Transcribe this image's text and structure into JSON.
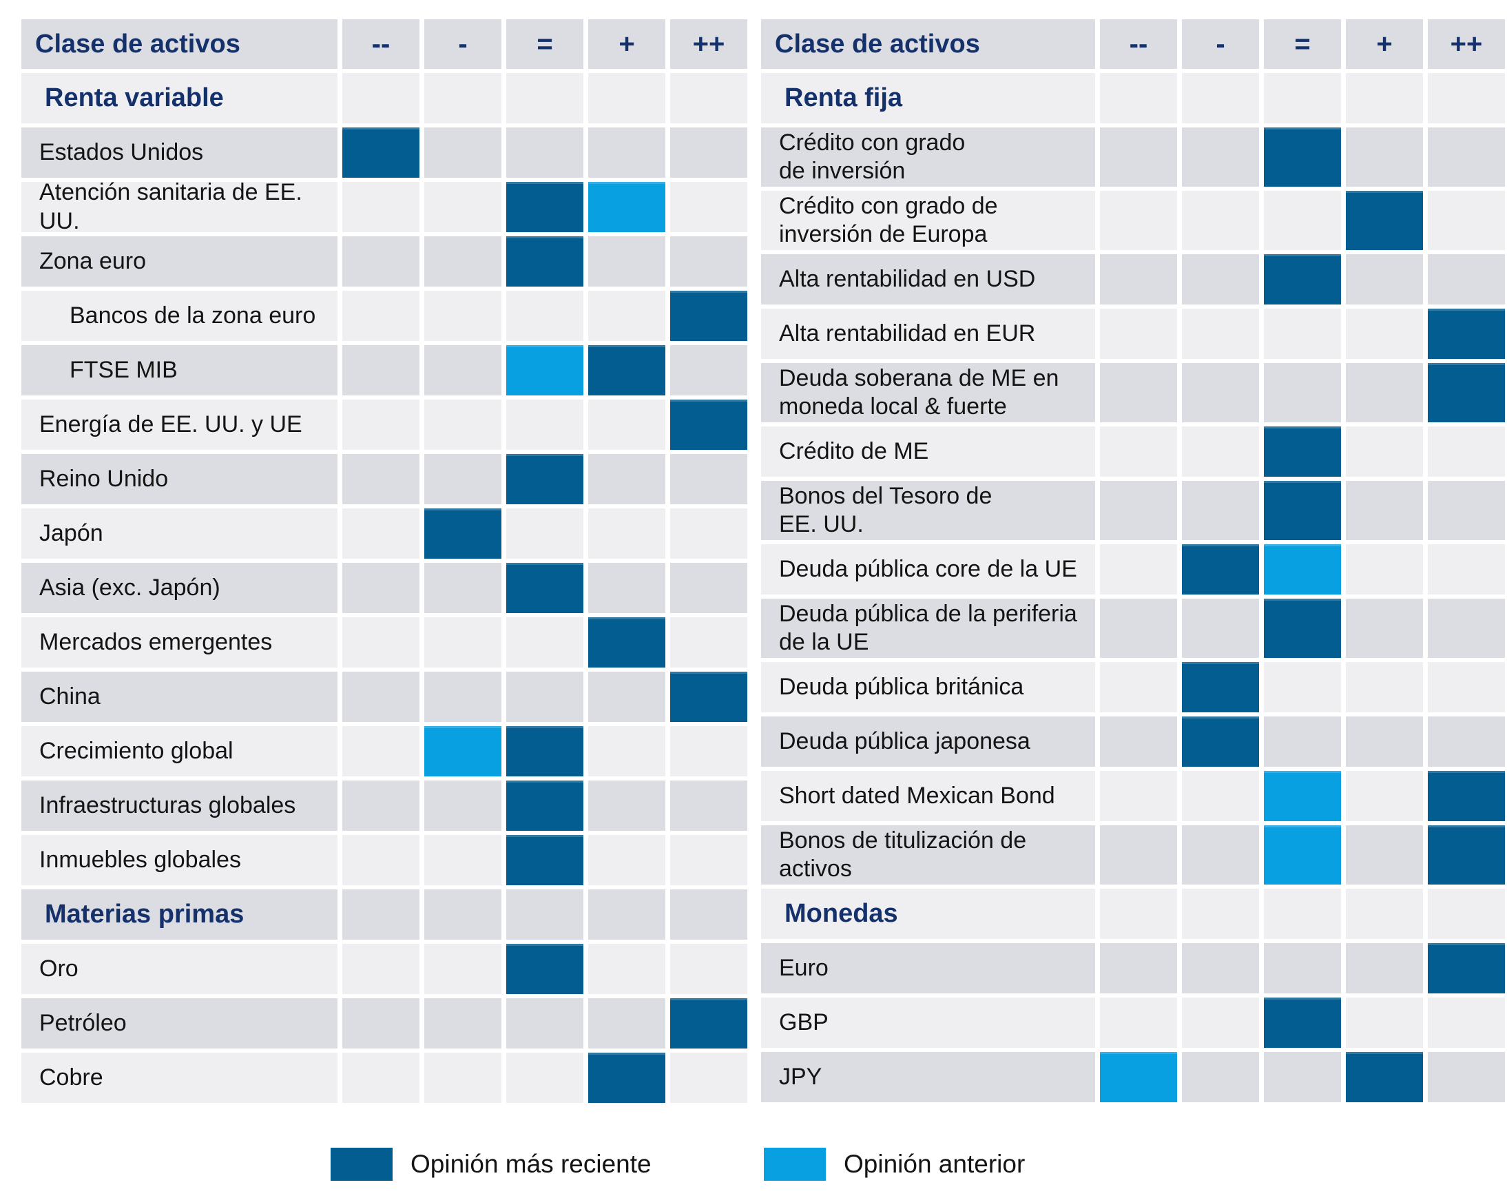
{
  "palette": {
    "recent": "#045d90",
    "previous": "#09a0e2",
    "row_dark": "#dcdde2",
    "row_light": "#efeff1",
    "navy": "#14316b"
  },
  "columns": [
    "--",
    "-",
    "=",
    "+",
    "++"
  ],
  "chart_data": {
    "type": "heatmap",
    "title": "",
    "x_categories": [
      "--",
      "-",
      "=",
      "+",
      "++"
    ],
    "legend": [
      "Opinión más reciente",
      "Opinión anterior"
    ],
    "legend_position": "bottom",
    "tables": [
      {
        "header_label": "Clase de activos",
        "rows": [
          {
            "type": "section",
            "label": "Renta variable"
          },
          {
            "type": "item",
            "label": "Estados Unidos",
            "marks": {
              "--": "recent"
            }
          },
          {
            "type": "item",
            "label": "Atención sanitaria de EE. UU.",
            "marks": {
              "=": "recent",
              "+": "previous"
            }
          },
          {
            "type": "item",
            "label": "Zona euro",
            "marks": {
              "=": "recent"
            }
          },
          {
            "type": "item",
            "indent": 1,
            "label": "Bancos de la zona euro",
            "marks": {
              "++": "recent"
            }
          },
          {
            "type": "item",
            "indent": 1,
            "label": "FTSE MIB",
            "marks": {
              "=": "previous",
              "+": "recent"
            }
          },
          {
            "type": "item",
            "label": "Energía de EE. UU. y UE",
            "marks": {
              "++": "recent"
            }
          },
          {
            "type": "item",
            "label": "Reino Unido",
            "marks": {
              "=": "recent"
            }
          },
          {
            "type": "item",
            "label": "Japón",
            "marks": {
              "-": "recent"
            }
          },
          {
            "type": "item",
            "label": "Asia (exc. Japón)",
            "marks": {
              "=": "recent"
            }
          },
          {
            "type": "item",
            "label": "Mercados emergentes",
            "marks": {
              "+": "recent"
            }
          },
          {
            "type": "item",
            "label": "China",
            "marks": {
              "++": "recent"
            }
          },
          {
            "type": "item",
            "label": "Crecimiento global",
            "marks": {
              "-": "previous",
              "=": "recent"
            }
          },
          {
            "type": "item",
            "label": "Infraestructuras globales",
            "marks": {
              "=": "recent"
            }
          },
          {
            "type": "item",
            "label": "Inmuebles globales",
            "marks": {
              "=": "recent"
            }
          },
          {
            "type": "section",
            "label": "Materias primas"
          },
          {
            "type": "item",
            "label": "Oro",
            "marks": {
              "=": "recent"
            }
          },
          {
            "type": "item",
            "label": "Petróleo",
            "marks": {
              "++": "recent"
            }
          },
          {
            "type": "item",
            "label": "Cobre",
            "marks": {
              "+": "recent"
            }
          }
        ]
      },
      {
        "header_label": "Clase de activos",
        "rows": [
          {
            "type": "section",
            "label": "Renta fija"
          },
          {
            "type": "item",
            "tall": true,
            "label": "Crédito con grado\nde inversión",
            "marks": {
              "=": "recent"
            }
          },
          {
            "type": "item",
            "tall": true,
            "label": "Crédito con grado de\ninversión de Europa",
            "marks": {
              "+": "recent"
            }
          },
          {
            "type": "item",
            "label": "Alta rentabilidad en USD",
            "marks": {
              "=": "recent"
            }
          },
          {
            "type": "item",
            "label": "Alta rentabilidad en EUR",
            "marks": {
              "++": "recent"
            }
          },
          {
            "type": "item",
            "tall": true,
            "label": "Deuda soberana de ME en\nmoneda local & fuerte",
            "marks": {
              "++": "recent"
            }
          },
          {
            "type": "item",
            "label": "Crédito de ME",
            "marks": {
              "=": "recent"
            }
          },
          {
            "type": "item",
            "tall": true,
            "label": "Bonos del Tesoro de\nEE. UU.",
            "marks": {
              "=": "recent"
            }
          },
          {
            "type": "item",
            "label": "Deuda pública core de la UE",
            "marks": {
              "-": "recent",
              "=": "previous"
            }
          },
          {
            "type": "item",
            "tall": true,
            "label": "Deuda pública de la periferia\nde la UE",
            "marks": {
              "=": "recent"
            }
          },
          {
            "type": "item",
            "label": "Deuda pública británica",
            "marks": {
              "-": "recent"
            }
          },
          {
            "type": "item",
            "label": "Deuda pública japonesa",
            "marks": {
              "-": "recent"
            }
          },
          {
            "type": "item",
            "label": "Short dated Mexican Bond",
            "marks": {
              "=": "previous",
              "++": "recent"
            }
          },
          {
            "type": "item",
            "tall": true,
            "label": "Bonos de titulización de\nactivos",
            "marks": {
              "=": "previous",
              "++": "recent"
            }
          },
          {
            "type": "section",
            "label": "Monedas"
          },
          {
            "type": "item",
            "label": "Euro",
            "marks": {
              "++": "recent"
            }
          },
          {
            "type": "item",
            "label": "GBP",
            "marks": {
              "=": "recent"
            }
          },
          {
            "type": "item",
            "label": "JPY",
            "marks": {
              "--": "previous",
              "+": "recent"
            }
          }
        ]
      }
    ]
  },
  "legend": [
    {
      "label": "Opinión más reciente",
      "type": "recent"
    },
    {
      "label": "Opinión anterior",
      "type": "previous"
    }
  ]
}
